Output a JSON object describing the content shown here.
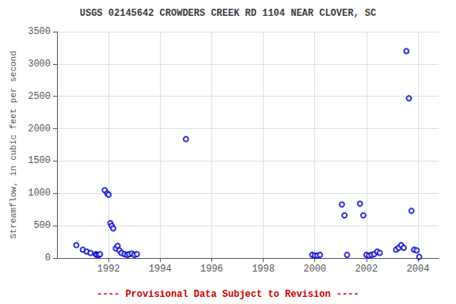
{
  "chart_data": {
    "type": "scatter",
    "title": "USGS 02145642 CROWDERS CREEK RD 1104 NEAR CLOVER, SC",
    "ylabel": "Streamflow, in cubic feet per second",
    "x": [
      1990.75,
      1991.0,
      1991.15,
      1991.3,
      1991.5,
      1991.55,
      1991.62,
      1991.67,
      1991.85,
      1991.95,
      1992.0,
      1992.07,
      1992.12,
      1992.18,
      1992.28,
      1992.35,
      1992.42,
      1992.5,
      1992.62,
      1992.72,
      1992.8,
      1992.9,
      1993.0,
      1993.1,
      1995.0,
      1999.9,
      2000.0,
      2000.1,
      2000.2,
      2001.05,
      2001.15,
      2001.25,
      2001.75,
      2001.88,
      2002.0,
      2002.1,
      2002.2,
      2002.3,
      2002.42,
      2002.52,
      2003.15,
      2003.25,
      2003.35,
      2003.45,
      2003.55,
      2003.65,
      2003.75,
      2003.85,
      2003.95,
      2004.05
    ],
    "values": [
      200,
      130,
      100,
      80,
      60,
      50,
      50,
      60,
      1050,
      1000,
      980,
      540,
      500,
      460,
      150,
      190,
      120,
      80,
      60,
      50,
      60,
      70,
      50,
      60,
      1840,
      50,
      40,
      40,
      50,
      830,
      660,
      50,
      840,
      660,
      50,
      40,
      50,
      60,
      100,
      80,
      130,
      160,
      200,
      160,
      3200,
      2470,
      730,
      130,
      120,
      20
    ],
    "color": "#0000CC",
    "marker": "open circle",
    "xlim": [
      1990.0,
      2004.8
    ],
    "ylim": [
      0,
      3500
    ],
    "xticks": [
      1992,
      1994,
      1996,
      1998,
      2000,
      2002,
      2004
    ],
    "yticks": [
      0,
      500,
      1000,
      1500,
      2000,
      2500,
      3000,
      3500
    ],
    "grid": true,
    "annotations": [
      {
        "text": "---- Provisional Data Subject to Revision ----",
        "color": "#cc0000"
      }
    ]
  }
}
